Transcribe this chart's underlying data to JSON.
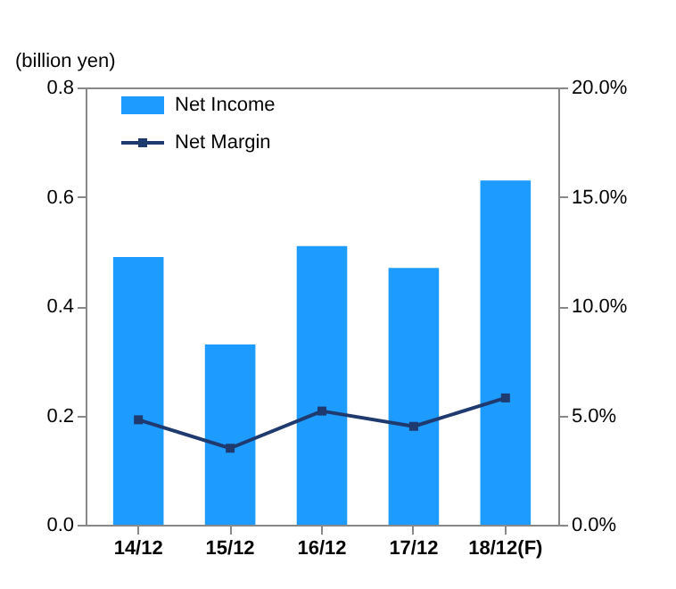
{
  "chart_data": {
    "type": "bar",
    "ylabel": "(billion yen)",
    "categories": [
      "14/12",
      "15/12",
      "16/12",
      "17/12",
      "18/12(F)"
    ],
    "series": [
      {
        "name": "Net Income",
        "color": "#1e9bff",
        "values": [
          0.49,
          0.33,
          0.51,
          0.47,
          0.63
        ]
      },
      {
        "name": "Net Margin",
        "type": "line",
        "axis": "y2",
        "color": "#1f3a6e",
        "values": [
          4.8,
          3.5,
          5.2,
          4.5,
          5.8
        ]
      }
    ],
    "ylim": [
      0,
      0.8
    ],
    "yticks": [
      {
        "value": 0,
        "label": "0.0"
      },
      {
        "value": 0.2,
        "label": "0.2"
      },
      {
        "value": 0.4,
        "label": "0.4"
      },
      {
        "value": 0.6,
        "label": "0.6"
      },
      {
        "value": 0.8,
        "label": "0.8"
      }
    ],
    "y2lim": [
      0,
      20
    ],
    "y2ticks": [
      {
        "value": 0,
        "label": "0.0%"
      },
      {
        "value": 5,
        "label": "5.0%"
      },
      {
        "value": 10,
        "label": "10.0%"
      },
      {
        "value": 15,
        "label": "15.0%"
      },
      {
        "value": 20,
        "label": "20.0%"
      }
    ],
    "grid": false,
    "legend": "top left",
    "marker": "square",
    "line_style": "solid"
  }
}
